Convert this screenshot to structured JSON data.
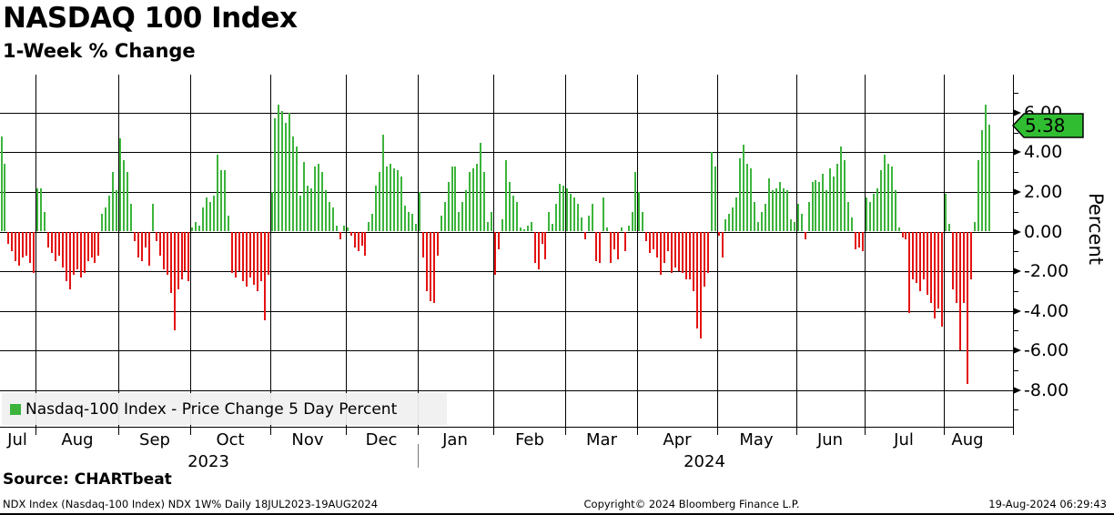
{
  "header": {
    "title": "NASDAQ 100 Index",
    "subtitle": "1-Week % Change"
  },
  "chart_data": {
    "type": "bar",
    "title": "NASDAQ 100 Index",
    "subtitle": "1-Week % Change",
    "xlabel": "",
    "ylabel": "Percent",
    "ylim": [
      -9.8,
      7.9
    ],
    "yticks": [
      6,
      4,
      2,
      0,
      -2,
      -4,
      -6,
      -8
    ],
    "ytick_labels": [
      "6.00",
      "4.00",
      "2.00",
      "0.00",
      "-2.00",
      "-4.00",
      "-6.00",
      "-8.00"
    ],
    "yticks_minor": [
      7,
      5,
      3,
      1,
      -1,
      -3,
      -5,
      -7,
      -9
    ],
    "grid": true,
    "legend_position": "bottom-left",
    "last_value_label": "5.38",
    "colors": {
      "positive": "#3CB43C",
      "negative": "#E31212",
      "badge": "#31BD31",
      "grid": "#000000"
    },
    "months": [
      {
        "label": "Jul",
        "year": "2023",
        "days": 10
      },
      {
        "label": "Aug",
        "year": "2023",
        "days": 23
      },
      {
        "label": "Sep",
        "year": "2023",
        "days": 20
      },
      {
        "label": "Oct",
        "year": "2023",
        "days": 22
      },
      {
        "label": "Nov",
        "year": "2023",
        "days": 21
      },
      {
        "label": "Dec",
        "year": "2023",
        "days": 20
      },
      {
        "label": "Jan",
        "year": "2024",
        "days": 21
      },
      {
        "label": "Feb",
        "year": "2024",
        "days": 20
      },
      {
        "label": "Mar",
        "year": "2024",
        "days": 20
      },
      {
        "label": "Apr",
        "year": "2024",
        "days": 22
      },
      {
        "label": "May",
        "year": "2024",
        "days": 22
      },
      {
        "label": "Jun",
        "year": "2024",
        "days": 19
      },
      {
        "label": "Jul",
        "year": "2024",
        "days": 22
      },
      {
        "label": "Aug",
        "year": "2024",
        "days": 13
      }
    ],
    "years": [
      {
        "label": "2023",
        "month_from": 0,
        "month_to": 6
      },
      {
        "label": "2024",
        "month_from": 6,
        "month_to": 14
      }
    ],
    "series": [
      {
        "name": "Nasdaq-100 Index - Price Change 5 Day Percent",
        "values": [
          4.8,
          3.4,
          -0.6,
          -1.0,
          -1.5,
          -1.7,
          -1.3,
          -1.2,
          -1.6,
          -2.1,
          2.2,
          2.2,
          1.0,
          -0.8,
          -1.1,
          -1.5,
          -1.2,
          -1.8,
          -2.5,
          -2.9,
          -2.2,
          -1.9,
          -2.3,
          -2.1,
          -1.5,
          -1.3,
          -1.6,
          -1.2,
          0.9,
          1.2,
          1.8,
          3.0,
          2.1,
          4.7,
          3.6,
          3.0,
          1.4,
          -0.5,
          -1.3,
          -1.5,
          -0.8,
          -1.7,
          1.4,
          -0.5,
          -1.2,
          -1.9,
          -2.2,
          -3.1,
          -5.0,
          -2.9,
          -2.4,
          -2.0,
          -2.5,
          0.2,
          0.5,
          0.3,
          1.2,
          1.7,
          1.5,
          1.8,
          3.9,
          3.1,
          3.1,
          0.8,
          -2.1,
          -2.3,
          -2.0,
          -2.5,
          -2.8,
          -2.3,
          -2.7,
          -3.0,
          -2.5,
          -4.5,
          -2.2,
          2.0,
          5.7,
          6.4,
          6.1,
          5.5,
          6.0,
          4.8,
          4.3,
          1.8,
          3.5,
          2.3,
          2.2,
          3.3,
          3.4,
          3.0,
          2.1,
          1.5,
          1.2,
          0.3,
          -0.4,
          0.3,
          0.2,
          -0.2,
          -0.8,
          -1.0,
          -0.7,
          -1.2,
          0.5,
          0.9,
          2.3,
          3.0,
          4.9,
          3.3,
          3.4,
          3.2,
          3.1,
          2.8,
          1.3,
          1.0,
          0.9,
          0.4,
          2.0,
          -1.3,
          -3.0,
          -3.5,
          -3.6,
          -1.2,
          0.8,
          1.5,
          2.5,
          3.3,
          3.3,
          1.0,
          1.5,
          2.1,
          3.0,
          3.2,
          3.4,
          4.5,
          3.0,
          0.5,
          1.0,
          -2.2,
          -0.9,
          0.6,
          3.6,
          2.5,
          1.8,
          1.5,
          0.2,
          0.1,
          0.3,
          0.5,
          -1.6,
          -1.9,
          -0.6,
          -1.4,
          1.0,
          0.4,
          1.4,
          2.4,
          2.3,
          2.2,
          1.9,
          1.7,
          1.4,
          0.7,
          -0.4,
          0.8,
          1.4,
          -1.5,
          -1.6,
          1.7,
          0.2,
          -1.6,
          -0.9,
          -1.4,
          0.2,
          -1.0,
          0.3,
          1.0,
          3.0,
          2.0,
          1.0,
          -0.5,
          -1.1,
          -0.9,
          -1.3,
          -2.2,
          -1.6,
          -1.0,
          -2.1,
          -1.8,
          -2.0,
          -2.1,
          -2.4,
          -2.4,
          -3.0,
          -4.9,
          -5.4,
          -2.8,
          -2.1,
          4.0,
          3.3,
          -0.2,
          -1.3,
          0.6,
          0.9,
          1.2,
          1.7,
          3.7,
          4.4,
          3.4,
          3.2,
          1.5,
          0.5,
          1.0,
          1.4,
          2.7,
          2.1,
          2.2,
          2.5,
          2.2,
          2.1,
          0.6,
          0.5,
          1.4,
          0.9,
          -0.4,
          1.5,
          2.5,
          2.6,
          2.5,
          2.9,
          2.1,
          3.2,
          2.8,
          3.4,
          4.3,
          3.6,
          1.5,
          0.7,
          -0.9,
          -0.8,
          -1.0,
          1.7,
          1.5,
          1.9,
          2.2,
          3.1,
          3.9,
          3.4,
          3.3,
          2.1,
          0.2,
          -0.3,
          -0.4,
          -4.1,
          -2.4,
          -2.6,
          -3.0,
          -2.4,
          -3.2,
          -3.6,
          -4.4,
          -3.9,
          -4.8,
          1.9,
          0.4,
          -2.9,
          -3.6,
          -6.0,
          -3.6,
          -7.7,
          -2.4,
          0.5,
          3.6,
          5.1,
          6.4,
          5.38
        ]
      }
    ]
  },
  "axis": {
    "percent_label": "Percent"
  },
  "legend": {
    "label": "Nasdaq-100 Index - Price Change 5 Day Percent"
  },
  "footer": {
    "source": "Source: CHARTbeat",
    "meta_left": "NDX Index (Nasdaq-100 Index) NDX 1W%  Daily 18JUL2023-19AUG2024",
    "copyright": "Copyright© 2024 Bloomberg Finance L.P.",
    "timestamp": "19-Aug-2024 06:29:43"
  }
}
